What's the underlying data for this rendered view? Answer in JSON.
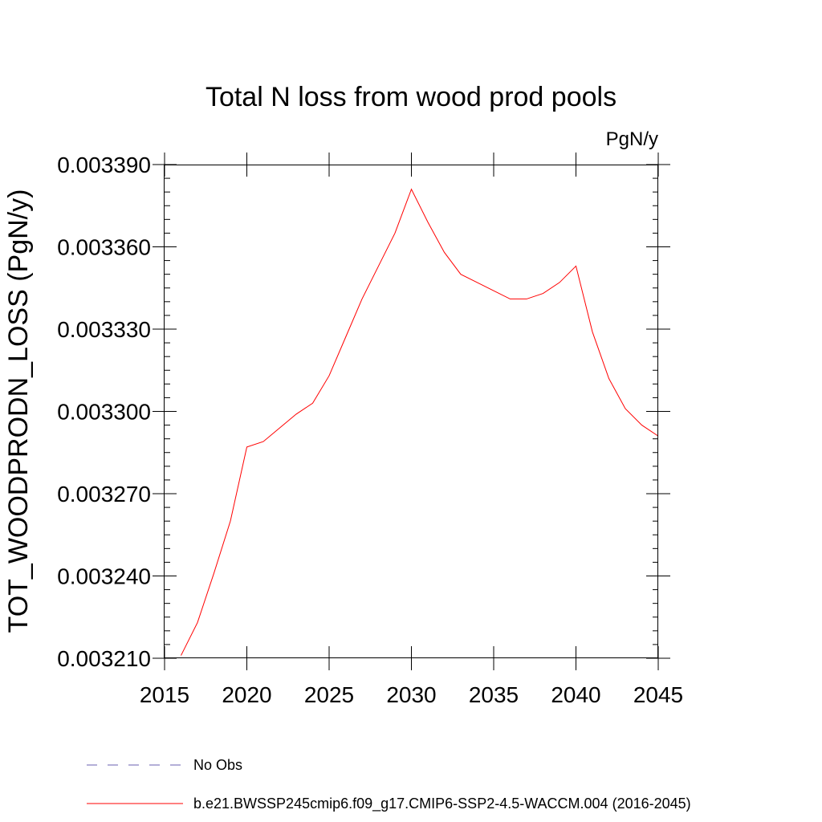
{
  "chart_data": {
    "type": "line",
    "title": "Total N loss from wood prod pools",
    "units": "PgN/y",
    "ylabel": "TOT_WOODPRODN_LOSS  (PgN/y)",
    "xlabel": "",
    "xlim": [
      2015,
      2045
    ],
    "ylim": [
      0.00321,
      0.00339
    ],
    "x_ticks": [
      2015,
      2020,
      2025,
      2030,
      2035,
      2040,
      2045
    ],
    "x_tick_labels": [
      "2015",
      "2020",
      "2025",
      "2030",
      "2035",
      "2040",
      "2045"
    ],
    "y_ticks": [
      0.00321,
      0.00324,
      0.00327,
      0.0033,
      0.00333,
      0.00336,
      0.00339
    ],
    "y_tick_labels": [
      "0.003210",
      "0.003240",
      "0.003270",
      "0.003300",
      "0.003330",
      "0.003360",
      "0.003390"
    ],
    "grid": false,
    "series": [
      {
        "name": "b.e21.BWSSP245cmip6.f09_g17.CMIP6-SSP2-4.5-WACCM.004 (2016-2045)",
        "color": "#ff0000",
        "x": [
          2016,
          2017,
          2018,
          2019,
          2020,
          2021,
          2022,
          2023,
          2024,
          2025,
          2026,
          2027,
          2028,
          2029,
          2030,
          2031,
          2032,
          2033,
          2034,
          2035,
          2036,
          2037,
          2038,
          2039,
          2040,
          2041,
          2042,
          2043,
          2044,
          2045
        ],
        "y": [
          0.003211,
          0.003223,
          0.003241,
          0.00326,
          0.003287,
          0.003289,
          0.003294,
          0.003299,
          0.003303,
          0.003313,
          0.003327,
          0.003341,
          0.003353,
          0.003365,
          0.003381,
          0.003369,
          0.003358,
          0.00335,
          0.003347,
          0.003344,
          0.003341,
          0.003341,
          0.003343,
          0.003347,
          0.003353,
          0.003329,
          0.003312,
          0.003301,
          0.003295,
          0.003291
        ]
      }
    ],
    "legend": {
      "placement": "bottom",
      "entries": [
        {
          "label": "No Obs",
          "style": "dashed",
          "color": "#6a5fb0"
        },
        {
          "label": "b.e21.BWSSP245cmip6.f09_g17.CMIP6-SSP2-4.5-WACCM.004 (2016-2045)",
          "style": "solid",
          "color": "#ff0000"
        }
      ]
    }
  }
}
